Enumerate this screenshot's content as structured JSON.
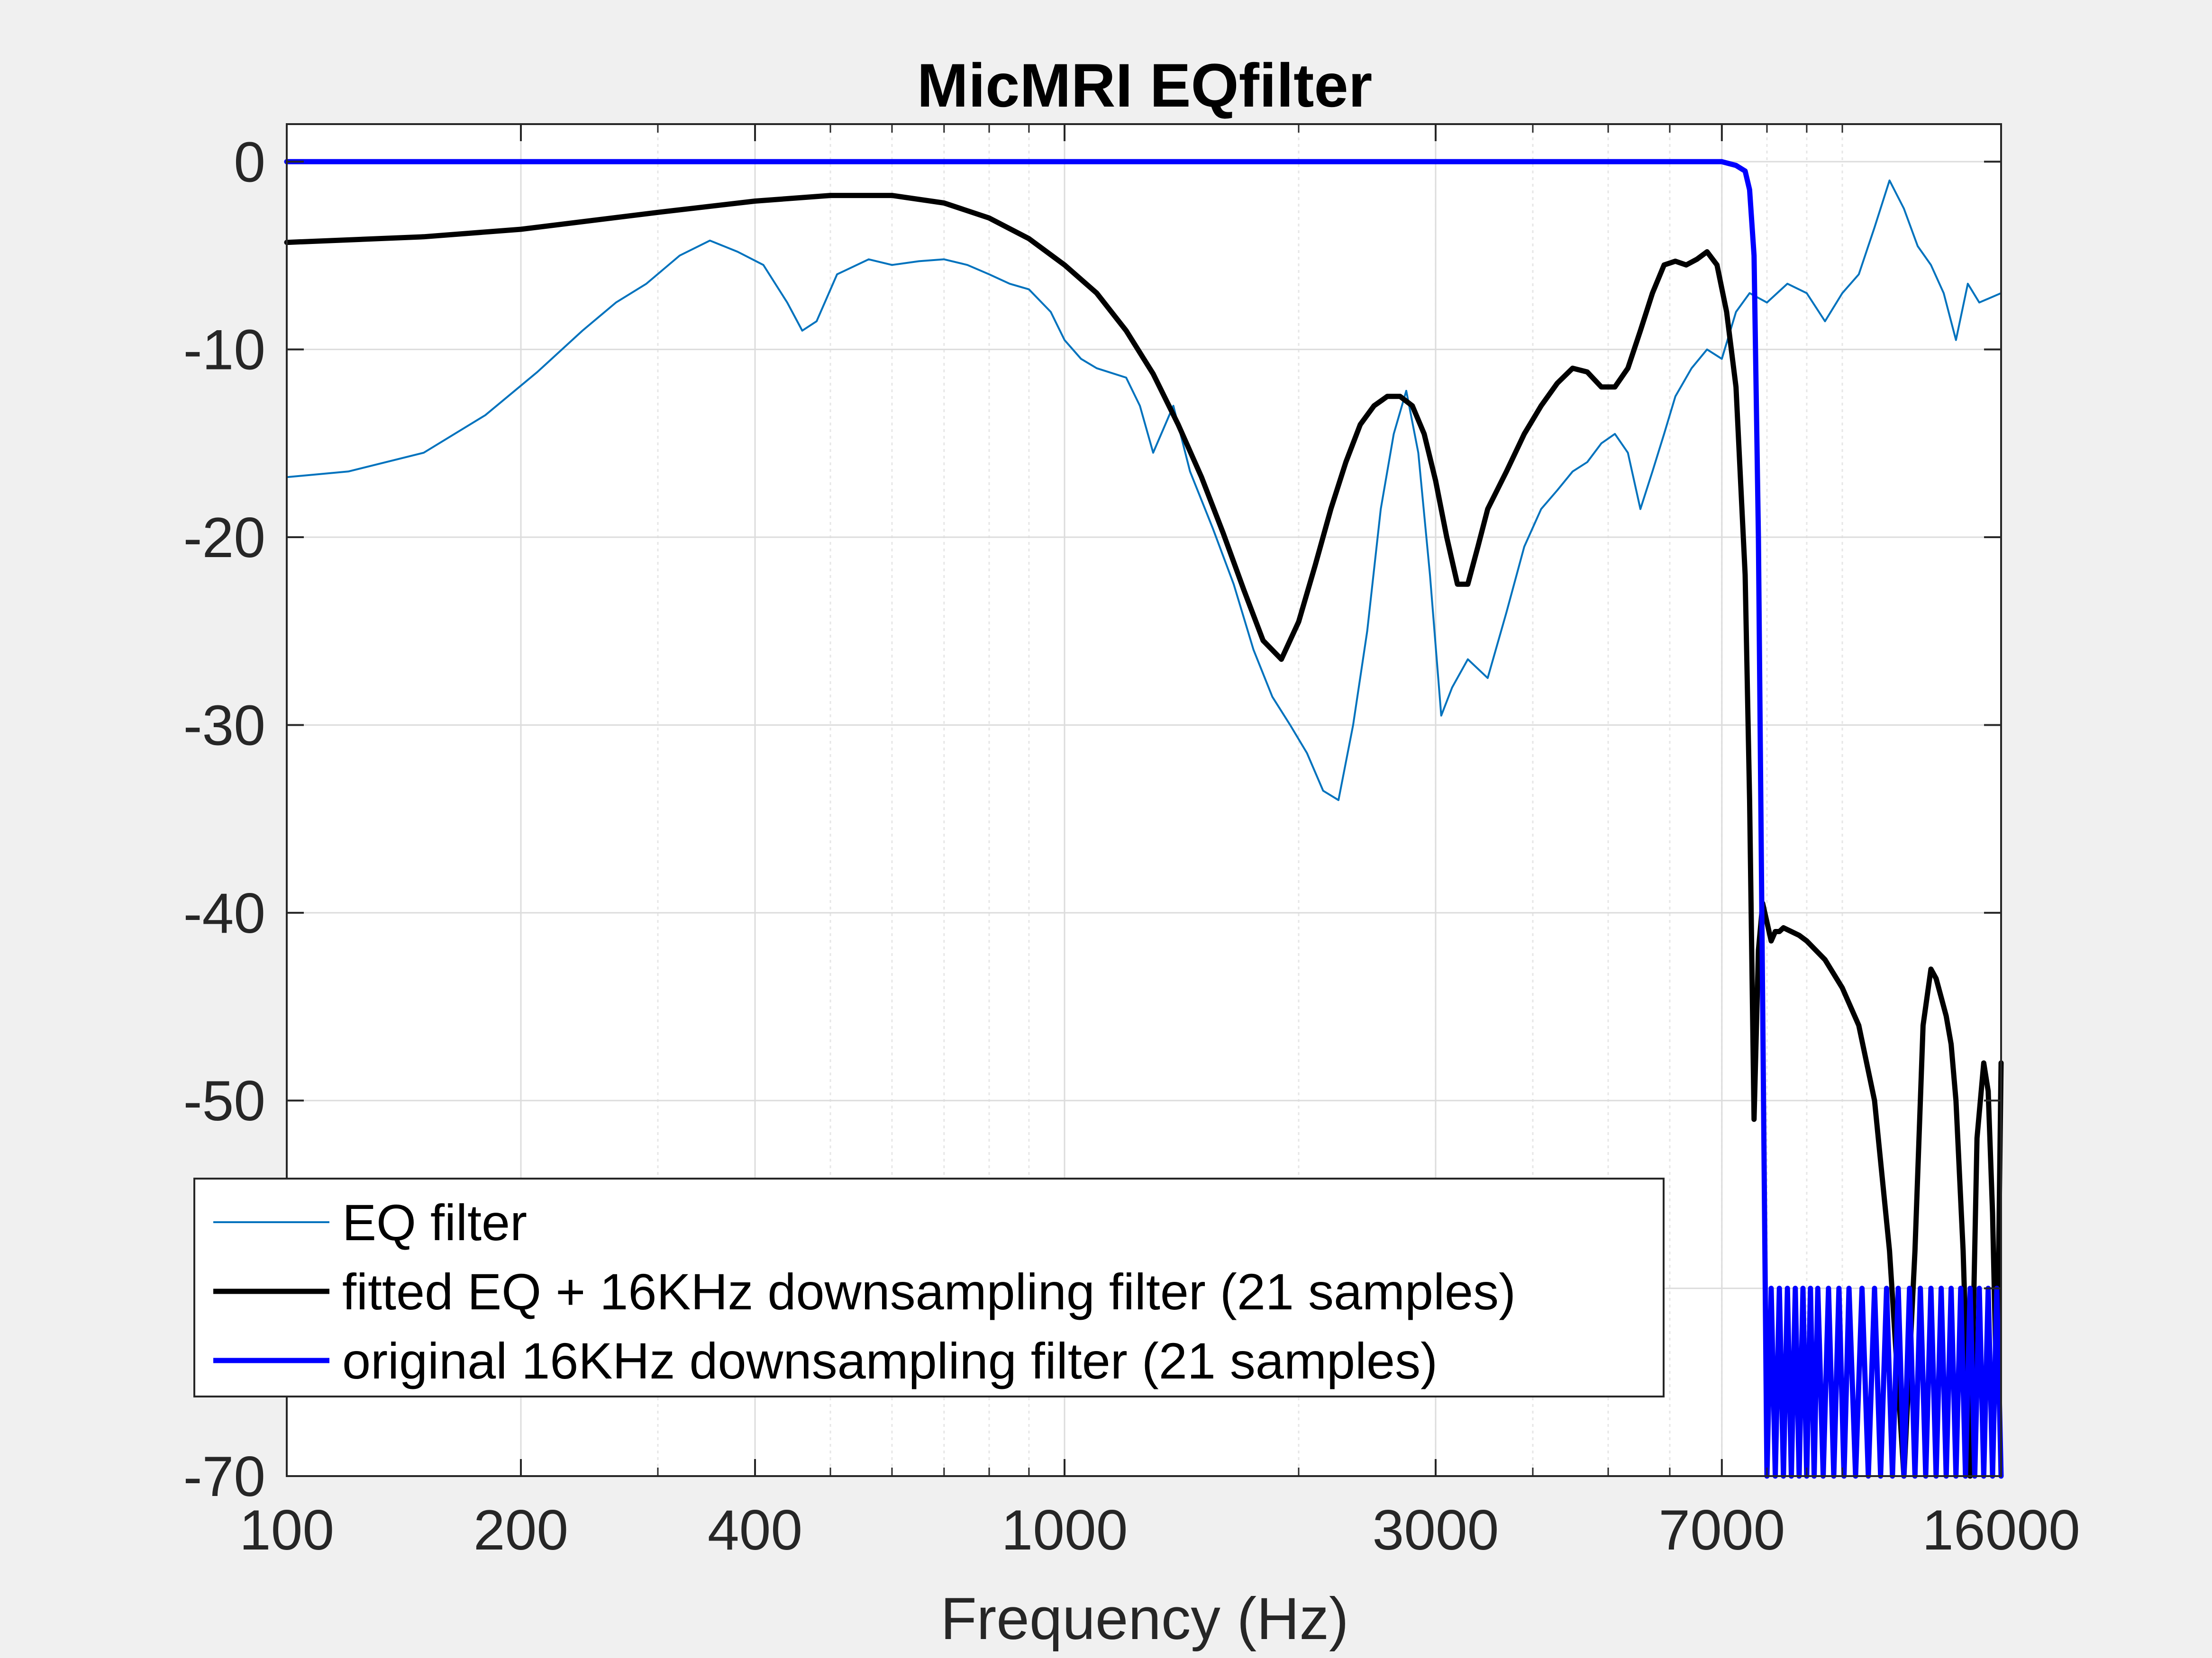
{
  "chart_data": {
    "type": "line",
    "title": "MicMRI EQfilter",
    "xlabel": "Frequency (Hz)",
    "ylabel": "",
    "xscale": "log",
    "xlim": [
      100,
      16000
    ],
    "ylim": [
      -70,
      2
    ],
    "xticks": [
      100,
      200,
      400,
      1000,
      3000,
      7000,
      16000
    ],
    "xtick_labels": [
      "100",
      "200",
      "400",
      "1000",
      "3000",
      "7000",
      "16000"
    ],
    "yticks": [
      0,
      -10,
      -20,
      -30,
      -40,
      -50,
      -60,
      -70
    ],
    "ytick_labels": [
      "0",
      "-10",
      "-20",
      "-30",
      "-40",
      "-50",
      "",
      "-70"
    ],
    "grid": true,
    "legend_position": "lower-left",
    "series": [
      {
        "name": "EQ filter",
        "color": "#0072bd",
        "style": "thin",
        "x": [
          100,
          120,
          150,
          180,
          210,
          240,
          265,
          290,
          320,
          350,
          380,
          410,
          440,
          460,
          480,
          510,
          560,
          600,
          650,
          700,
          750,
          800,
          850,
          900,
          960,
          1000,
          1050,
          1100,
          1200,
          1250,
          1300,
          1380,
          1450,
          1550,
          1650,
          1750,
          1850,
          1950,
          2050,
          2150,
          2250,
          2350,
          2450,
          2550,
          2650,
          2750,
          2850,
          2950,
          3050,
          3150,
          3300,
          3500,
          3700,
          3900,
          4100,
          4300,
          4500,
          4700,
          4900,
          5100,
          5300,
          5500,
          5700,
          5900,
          6100,
          6400,
          6700,
          7000,
          7300,
          7600,
          8000,
          8500,
          9000,
          9500,
          10000,
          10500,
          11000,
          11500,
          12000,
          12500,
          13000,
          13500,
          14000,
          14500,
          15000,
          16000
        ],
        "y": [
          -16.8,
          -16.5,
          -15.5,
          -13.5,
          -11.2,
          -9.0,
          -7.5,
          -6.5,
          -5.0,
          -4.2,
          -4.8,
          -5.5,
          -7.5,
          -9.0,
          -8.5,
          -6.0,
          -5.2,
          -5.5,
          -5.3,
          -5.2,
          -5.5,
          -6.0,
          -6.5,
          -6.8,
          -8.0,
          -9.5,
          -10.5,
          -11.0,
          -11.5,
          -13.0,
          -15.5,
          -13.0,
          -16.5,
          -19.5,
          -22.5,
          -26.0,
          -28.5,
          -30.0,
          -31.5,
          -33.5,
          -34.0,
          -30.0,
          -25.0,
          -18.5,
          -14.5,
          -12.2,
          -15.5,
          -22.0,
          -29.5,
          -28.0,
          -26.5,
          -27.5,
          -24.0,
          -20.5,
          -18.5,
          -17.5,
          -16.5,
          -16.0,
          -15.0,
          -14.5,
          -15.5,
          -18.5,
          -16.5,
          -14.5,
          -12.5,
          -11.0,
          -10.0,
          -10.5,
          -8.0,
          -7.0,
          -7.5,
          -6.5,
          -7.0,
          -8.5,
          -7.0,
          -6.0,
          -3.5,
          -1.0,
          -2.5,
          -4.5,
          -5.5,
          -7.0,
          -9.5,
          -6.5,
          -7.5,
          -7.0
        ]
      },
      {
        "name": "fitted EQ + 16KHz downsampling filter (21 samples)",
        "color": "#000000",
        "style": "thick",
        "x": [
          100,
          150,
          200,
          300,
          400,
          500,
          600,
          700,
          800,
          900,
          1000,
          1100,
          1200,
          1300,
          1400,
          1500,
          1600,
          1700,
          1800,
          1900,
          2000,
          2100,
          2200,
          2300,
          2400,
          2500,
          2600,
          2700,
          2800,
          2900,
          3000,
          3100,
          3200,
          3300,
          3400,
          3500,
          3700,
          3900,
          4100,
          4300,
          4500,
          4700,
          4900,
          5100,
          5300,
          5500,
          5700,
          5900,
          6100,
          6300,
          6500,
          6700,
          6900,
          7100,
          7300,
          7500,
          7600,
          7700,
          7800,
          7900,
          8000,
          8100,
          8200,
          8300,
          8400,
          8600,
          8800,
          9000,
          9500,
          10000,
          10500,
          11000,
          11500,
          12000,
          12400,
          12700,
          13000,
          13200,
          13400,
          13600,
          13800,
          14000,
          14300,
          14600,
          14900,
          15200,
          15400,
          15600,
          15800,
          16000
        ],
        "y": [
          -4.3,
          -4.0,
          -3.6,
          -2.7,
          -2.1,
          -1.8,
          -1.8,
          -2.2,
          -3.0,
          -4.1,
          -5.5,
          -7.0,
          -9.0,
          -11.3,
          -14.0,
          -16.8,
          -19.8,
          -22.8,
          -25.5,
          -26.5,
          -24.5,
          -21.5,
          -18.5,
          -16.0,
          -14.0,
          -13.0,
          -12.5,
          -12.5,
          -13.0,
          -14.5,
          -17.0,
          -20.0,
          -22.5,
          -22.5,
          -20.5,
          -18.5,
          -16.5,
          -14.5,
          -13.0,
          -11.8,
          -11.0,
          -11.2,
          -12.0,
          -12.0,
          -11.0,
          -9.0,
          -7.0,
          -5.5,
          -5.3,
          -5.5,
          -5.2,
          -4.8,
          -5.5,
          -8.0,
          -12.0,
          -22.0,
          -34.0,
          -51.0,
          -42.0,
          -39.5,
          -40.5,
          -41.5,
          -41.0,
          -41.0,
          -40.8,
          -41.0,
          -41.2,
          -41.5,
          -42.5,
          -44.0,
          -46.0,
          -50.0,
          -58.0,
          -72.0,
          -58.0,
          -46.0,
          -43.0,
          -43.5,
          -44.5,
          -45.5,
          -47.0,
          -50.0,
          -58.0,
          -70.0,
          -52.0,
          -48.0,
          -49.5,
          -56.0,
          -66.0,
          -48.0
        ]
      },
      {
        "name": "original 16KHz downsampling filter (21 samples)",
        "color": "#0000ff",
        "style": "thick",
        "x": [
          100,
          200,
          400,
          1000,
          2000,
          4000,
          6000,
          7000,
          7300,
          7500,
          7600,
          7700,
          7800,
          7900,
          8000,
          8100,
          8200,
          8300,
          8400,
          8500,
          8600,
          8700,
          8800,
          8900,
          9000,
          9100,
          9200,
          9300,
          9450,
          9600,
          9750,
          9900,
          10050,
          10200,
          10400,
          10600,
          10800,
          11000,
          11200,
          11400,
          11600,
          11800,
          12000,
          12200,
          12400,
          12600,
          12800,
          13000,
          13200,
          13400,
          13600,
          13800,
          14000,
          14200,
          14400,
          14600,
          14800,
          15000,
          15200,
          15400,
          15600,
          15800,
          16000
        ],
        "y": [
          0,
          0,
          0,
          0,
          0,
          0,
          0,
          0,
          -0.2,
          -0.5,
          -1.5,
          -5.0,
          -20.0,
          -45.0,
          -70.0,
          -60.0,
          -70.0,
          -60.0,
          -70.0,
          -60.0,
          -70.0,
          -60.0,
          -70.0,
          -60.0,
          -70.0,
          -60.0,
          -70.0,
          -60.0,
          -70.0,
          -60.0,
          -70.0,
          -60.0,
          -70.0,
          -60.0,
          -70.0,
          -60.0,
          -70.0,
          -60.0,
          -70.0,
          -60.0,
          -70.0,
          -60.0,
          -70.0,
          -60.0,
          -70.0,
          -60.0,
          -70.0,
          -60.0,
          -70.0,
          -60.0,
          -70.0,
          -60.0,
          -70.0,
          -60.0,
          -70.0,
          -60.0,
          -70.0,
          -60.0,
          -70.0,
          -60.0,
          -70.0,
          -60.0,
          -70.0
        ]
      }
    ]
  }
}
